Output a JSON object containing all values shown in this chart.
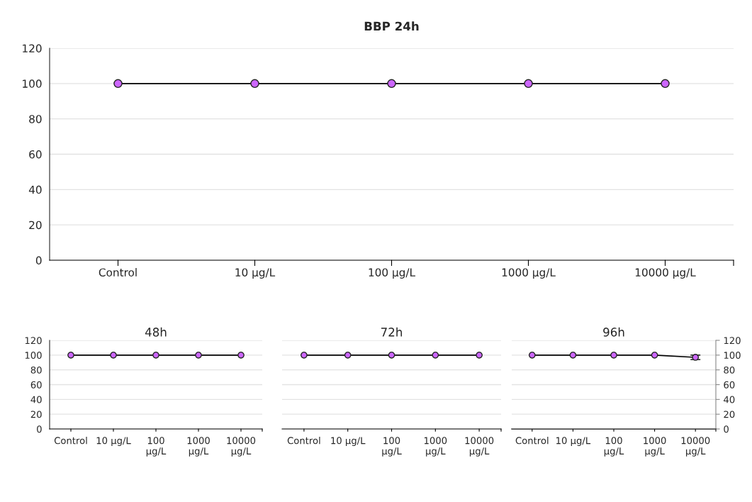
{
  "chart_data": [
    {
      "type": "line",
      "title": "BBP 24h",
      "categories": [
        "Control",
        "10 µg/L",
        "100 µg/L",
        "1000 µg/L",
        "10000 µg/L"
      ],
      "series": [
        {
          "color": "#cc66ff",
          "values": [
            100,
            100,
            100,
            100,
            100
          ]
        }
      ],
      "ylim": [
        0,
        120
      ],
      "yticks": [
        0,
        20,
        40,
        60,
        80,
        100,
        120
      ],
      "grid": "y",
      "marker": "circle",
      "line_style": "solid"
    },
    {
      "type": "line",
      "title": "48h",
      "categories": [
        "Control",
        "10 µg/L",
        "100 µg/L",
        "1000 µg/L",
        "10000 µg/L"
      ],
      "series": [
        {
          "color": "#cc66ff",
          "values": [
            100,
            100,
            100,
            100,
            100
          ]
        }
      ],
      "ylim": [
        0,
        120
      ],
      "yticks": [
        0,
        20,
        40,
        60,
        80,
        100,
        120
      ],
      "grid": "y",
      "marker": "circle",
      "line_style": "solid"
    },
    {
      "type": "line",
      "title": "72h",
      "categories": [
        "Control",
        "10 µg/L",
        "100 µg/L",
        "1000 µg/L",
        "10000 µg/L"
      ],
      "series": [
        {
          "color": "#cc66ff",
          "values": [
            100,
            100,
            100,
            100,
            100
          ]
        }
      ],
      "ylim": [
        0,
        120
      ],
      "yticks": [
        0,
        20,
        40,
        60,
        80,
        100,
        120
      ],
      "tick_labels": "x",
      "grid": "y",
      "marker": "circle",
      "line_style": "solid"
    },
    {
      "type": "line",
      "title": "96h",
      "categories": [
        "Control",
        "10 µg/L",
        "100 µg/L",
        "1000 µg/L",
        "10000 µg/L"
      ],
      "series": [
        {
          "color": "#cc66ff",
          "axis": "y2",
          "values": [
            100,
            100,
            100,
            100,
            97
          ],
          "errors": [
            null,
            null,
            null,
            null,
            3
          ]
        }
      ],
      "y2lim": [
        0,
        120
      ],
      "y2ticks": [
        0,
        20,
        40,
        60,
        80,
        100,
        120
      ],
      "grid": "y",
      "marker": "circle",
      "line_style": "solid"
    }
  ]
}
